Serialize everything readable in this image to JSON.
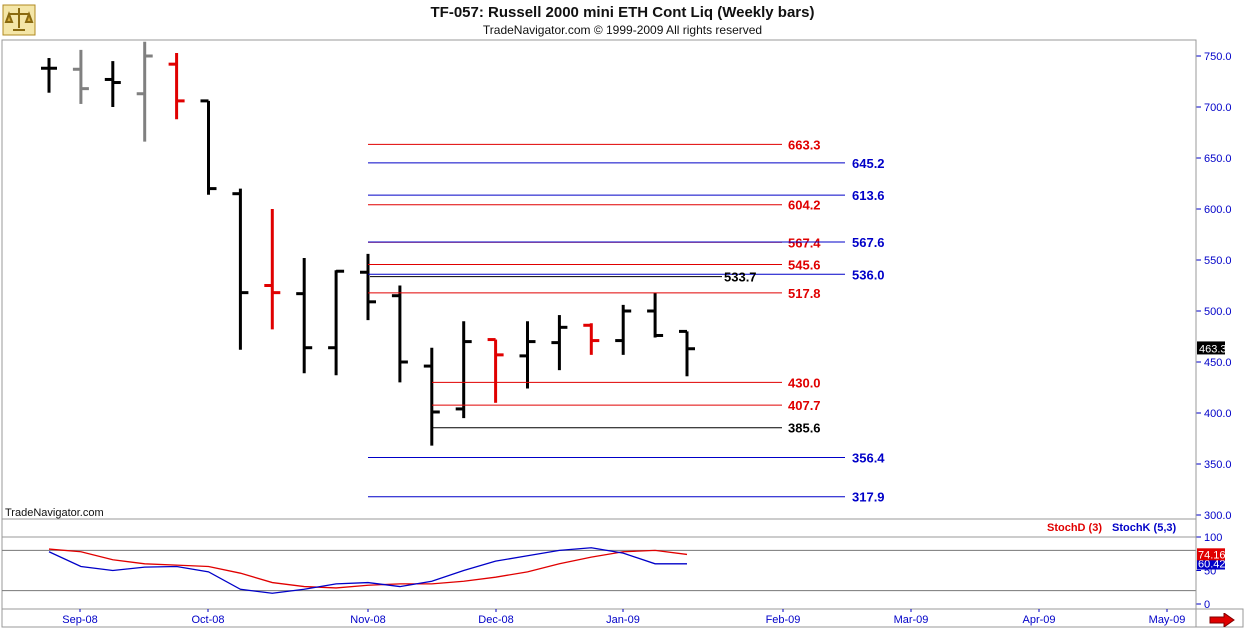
{
  "header": {
    "title": "TF-057:  Russell 2000 mini ETH Cont Liq  (Weekly bars)",
    "subtitle": "TradeNavigator.com © 1999-2009 All rights reserved"
  },
  "watermark": "TradeNavigator.com",
  "colors": {
    "up": "#000000",
    "gray": "#808080",
    "red": "#e00000",
    "blue": "#0000c8",
    "axis": "#0000c8",
    "last_price_bg": "#000000",
    "stoch_d": "#e00000",
    "stoch_k": "#0000c8"
  },
  "chart_data": [
    {
      "type": "ohlc",
      "ylim": [
        300,
        750
      ],
      "y_ticks": [
        "750.0",
        "700.0",
        "650.0",
        "600.0",
        "550.0",
        "500.0",
        "450.0",
        "400.0",
        "350.0",
        "300.0"
      ],
      "x_labels": [
        "Sep-08",
        "Oct-08",
        "Nov-08",
        "Dec-08",
        "Jan-09",
        "Feb-09",
        "Mar-09",
        "Apr-09",
        "May-09"
      ],
      "last_price": "463.3",
      "bars": [
        {
          "o": 738,
          "h": 748,
          "l": 714,
          "c": 738,
          "color": "black"
        },
        {
          "o": 737,
          "h": 756,
          "l": 703,
          "c": 718,
          "color": "gray"
        },
        {
          "o": 727,
          "h": 745,
          "l": 700,
          "c": 724,
          "color": "black"
        },
        {
          "o": 713,
          "h": 764,
          "l": 666,
          "c": 750,
          "color": "gray"
        },
        {
          "o": 742,
          "h": 753,
          "l": 688,
          "c": 706,
          "color": "red"
        },
        {
          "o": 706,
          "h": 706,
          "l": 614,
          "c": 620,
          "color": "black"
        },
        {
          "o": 615,
          "h": 620,
          "l": 462,
          "c": 518,
          "color": "black"
        },
        {
          "o": 525,
          "h": 600,
          "l": 482,
          "c": 518,
          "color": "red"
        },
        {
          "o": 517,
          "h": 552,
          "l": 439,
          "c": 464,
          "color": "black"
        },
        {
          "o": 464,
          "h": 540,
          "l": 437,
          "c": 539,
          "color": "black"
        },
        {
          "o": 538,
          "h": 556,
          "l": 491,
          "c": 509,
          "color": "black"
        },
        {
          "o": 515,
          "h": 525,
          "l": 430,
          "c": 450,
          "color": "black"
        },
        {
          "o": 446,
          "h": 464,
          "l": 368,
          "c": 401,
          "color": "black"
        },
        {
          "o": 404,
          "h": 490,
          "l": 395,
          "c": 470,
          "color": "black"
        },
        {
          "o": 472,
          "h": 472,
          "l": 410,
          "c": 457,
          "color": "red"
        },
        {
          "o": 456,
          "h": 490,
          "l": 424,
          "c": 470,
          "color": "black"
        },
        {
          "o": 469,
          "h": 496,
          "l": 442,
          "c": 484,
          "color": "black"
        },
        {
          "o": 486,
          "h": 488,
          "l": 457,
          "c": 471,
          "color": "red"
        },
        {
          "o": 471,
          "h": 506,
          "l": 457,
          "c": 500,
          "color": "black"
        },
        {
          "o": 500,
          "h": 518,
          "l": 474,
          "c": 476,
          "color": "black"
        },
        {
          "o": 480,
          "h": 480,
          "l": 436,
          "c": 463,
          "color": "black"
        }
      ],
      "levels": [
        {
          "value": 663.3,
          "label": "663.3",
          "color": "red"
        },
        {
          "value": 645.2,
          "label": "645.2",
          "color": "blue"
        },
        {
          "value": 613.6,
          "label": "613.6",
          "color": "blue"
        },
        {
          "value": 604.2,
          "label": "604.2",
          "color": "red"
        },
        {
          "value": 567.4,
          "label": "567.4",
          "color": "red"
        },
        {
          "value": 567.6,
          "label": "567.6",
          "color": "blue"
        },
        {
          "value": 545.6,
          "label": "545.6",
          "color": "red"
        },
        {
          "value": 536.0,
          "label": "536.0",
          "color": "blue"
        },
        {
          "value": 533.7,
          "label": "533.7",
          "color": "black"
        },
        {
          "value": 517.8,
          "label": "517.8",
          "color": "red"
        },
        {
          "value": 430.0,
          "label": "430.0",
          "color": "red"
        },
        {
          "value": 407.7,
          "label": "407.7",
          "color": "red"
        },
        {
          "value": 385.6,
          "label": "385.6",
          "color": "black"
        },
        {
          "value": 356.4,
          "label": "356.4",
          "color": "blue"
        },
        {
          "value": 317.9,
          "label": "317.9",
          "color": "blue"
        }
      ]
    },
    {
      "type": "line",
      "ylim": [
        0,
        100
      ],
      "y_ticks": [
        "100",
        "50",
        "0"
      ],
      "legend": [
        {
          "name": "StochD (3)",
          "color": "red"
        },
        {
          "name": "StochK (5,3)",
          "color": "blue"
        }
      ],
      "last_values": {
        "d": "74.16",
        "k": "60.42"
      },
      "series": [
        {
          "name": "StochD (3)",
          "values": [
            82,
            78,
            66,
            60,
            58,
            56,
            46,
            32,
            26,
            24,
            28,
            30,
            30,
            34,
            40,
            48,
            60,
            70,
            78,
            80,
            74
          ]
        },
        {
          "name": "StochK (5,3)",
          "values": [
            78,
            56,
            50,
            55,
            56,
            48,
            22,
            16,
            22,
            30,
            32,
            26,
            34,
            50,
            64,
            72,
            80,
            84,
            76,
            60,
            60
          ]
        }
      ]
    }
  ]
}
